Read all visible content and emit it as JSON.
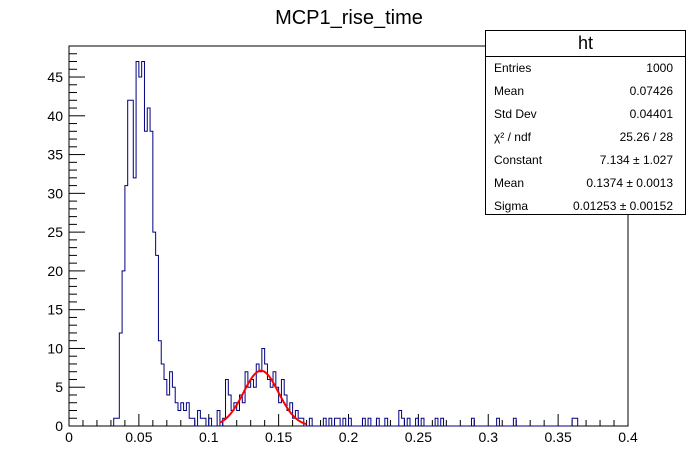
{
  "chart_data": {
    "type": "histogram",
    "title": "MCP1_rise_time",
    "xlabel": "",
    "ylabel": "",
    "xlim": [
      0,
      0.4
    ],
    "ylim": [
      0,
      49
    ],
    "x_ticks": [
      "0",
      "0.05",
      "0.1",
      "0.15",
      "0.2",
      "0.25",
      "0.3",
      "0.35",
      "0.4"
    ],
    "y_ticks": [
      "0",
      "5",
      "10",
      "15",
      "20",
      "25",
      "30",
      "35",
      "40",
      "45"
    ],
    "bin_width": 0.002,
    "bins": [
      {
        "x": 0.032,
        "y": 1
      },
      {
        "x": 0.034,
        "y": 1
      },
      {
        "x": 0.036,
        "y": 12
      },
      {
        "x": 0.038,
        "y": 20
      },
      {
        "x": 0.04,
        "y": 31
      },
      {
        "x": 0.042,
        "y": 42
      },
      {
        "x": 0.044,
        "y": 42
      },
      {
        "x": 0.046,
        "y": 32
      },
      {
        "x": 0.048,
        "y": 47
      },
      {
        "x": 0.05,
        "y": 45
      },
      {
        "x": 0.052,
        "y": 47
      },
      {
        "x": 0.054,
        "y": 38
      },
      {
        "x": 0.056,
        "y": 41
      },
      {
        "x": 0.058,
        "y": 38
      },
      {
        "x": 0.06,
        "y": 25
      },
      {
        "x": 0.062,
        "y": 22
      },
      {
        "x": 0.064,
        "y": 11
      },
      {
        "x": 0.066,
        "y": 8
      },
      {
        "x": 0.068,
        "y": 6
      },
      {
        "x": 0.07,
        "y": 4
      },
      {
        "x": 0.072,
        "y": 7
      },
      {
        "x": 0.074,
        "y": 5
      },
      {
        "x": 0.076,
        "y": 3
      },
      {
        "x": 0.078,
        "y": 2
      },
      {
        "x": 0.08,
        "y": 3
      },
      {
        "x": 0.082,
        "y": 2
      },
      {
        "x": 0.084,
        "y": 3
      },
      {
        "x": 0.086,
        "y": 1
      },
      {
        "x": 0.088,
        "y": 1
      },
      {
        "x": 0.092,
        "y": 2
      },
      {
        "x": 0.094,
        "y": 1
      },
      {
        "x": 0.096,
        "y": 1
      },
      {
        "x": 0.1,
        "y": 1
      },
      {
        "x": 0.106,
        "y": 2
      },
      {
        "x": 0.11,
        "y": 1
      },
      {
        "x": 0.112,
        "y": 6
      },
      {
        "x": 0.114,
        "y": 4
      },
      {
        "x": 0.116,
        "y": 2
      },
      {
        "x": 0.118,
        "y": 3
      },
      {
        "x": 0.12,
        "y": 2
      },
      {
        "x": 0.122,
        "y": 4
      },
      {
        "x": 0.124,
        "y": 3
      },
      {
        "x": 0.126,
        "y": 7
      },
      {
        "x": 0.128,
        "y": 5
      },
      {
        "x": 0.13,
        "y": 6
      },
      {
        "x": 0.132,
        "y": 5
      },
      {
        "x": 0.134,
        "y": 8
      },
      {
        "x": 0.136,
        "y": 7
      },
      {
        "x": 0.138,
        "y": 10
      },
      {
        "x": 0.14,
        "y": 8
      },
      {
        "x": 0.142,
        "y": 6
      },
      {
        "x": 0.144,
        "y": 5
      },
      {
        "x": 0.146,
        "y": 7
      },
      {
        "x": 0.148,
        "y": 5
      },
      {
        "x": 0.15,
        "y": 3
      },
      {
        "x": 0.152,
        "y": 6
      },
      {
        "x": 0.154,
        "y": 4
      },
      {
        "x": 0.156,
        "y": 2
      },
      {
        "x": 0.158,
        "y": 3
      },
      {
        "x": 0.16,
        "y": 1
      },
      {
        "x": 0.162,
        "y": 2
      },
      {
        "x": 0.164,
        "y": 1
      },
      {
        "x": 0.166,
        "y": 1
      },
      {
        "x": 0.172,
        "y": 1
      },
      {
        "x": 0.182,
        "y": 1
      },
      {
        "x": 0.186,
        "y": 1
      },
      {
        "x": 0.19,
        "y": 1
      },
      {
        "x": 0.192,
        "y": 1
      },
      {
        "x": 0.196,
        "y": 1
      },
      {
        "x": 0.2,
        "y": 1
      },
      {
        "x": 0.21,
        "y": 1
      },
      {
        "x": 0.214,
        "y": 1
      },
      {
        "x": 0.22,
        "y": 1
      },
      {
        "x": 0.226,
        "y": 1
      },
      {
        "x": 0.236,
        "y": 2
      },
      {
        "x": 0.238,
        "y": 1
      },
      {
        "x": 0.242,
        "y": 1
      },
      {
        "x": 0.248,
        "y": 1
      },
      {
        "x": 0.252,
        "y": 1
      },
      {
        "x": 0.262,
        "y": 1
      },
      {
        "x": 0.266,
        "y": 1
      },
      {
        "x": 0.288,
        "y": 1
      },
      {
        "x": 0.306,
        "y": 1
      },
      {
        "x": 0.318,
        "y": 1
      },
      {
        "x": 0.36,
        "y": 1
      },
      {
        "x": 0.362,
        "y": 1
      }
    ],
    "histogram_color": "#000080",
    "fit": {
      "type": "gaus",
      "constant": 7.134,
      "mean": 0.1374,
      "sigma": 0.01253,
      "range": [
        0.108,
        0.17
      ],
      "color": "#ff0000"
    },
    "stats_box": {
      "title": "ht",
      "rows": [
        {
          "label": "Entries",
          "value": "1000"
        },
        {
          "label": "Mean",
          "value": "0.07426"
        },
        {
          "label": "Std Dev",
          "value": "0.04401"
        },
        {
          "label": "χ² / ndf",
          "value": "25.26 / 28"
        },
        {
          "label": "Constant",
          "value": "7.134 ± 1.027"
        },
        {
          "label": "Mean",
          "value": "0.1374 ± 0.0013"
        },
        {
          "label": "Sigma",
          "value": "0.01253 ± 0.00152"
        }
      ]
    }
  }
}
